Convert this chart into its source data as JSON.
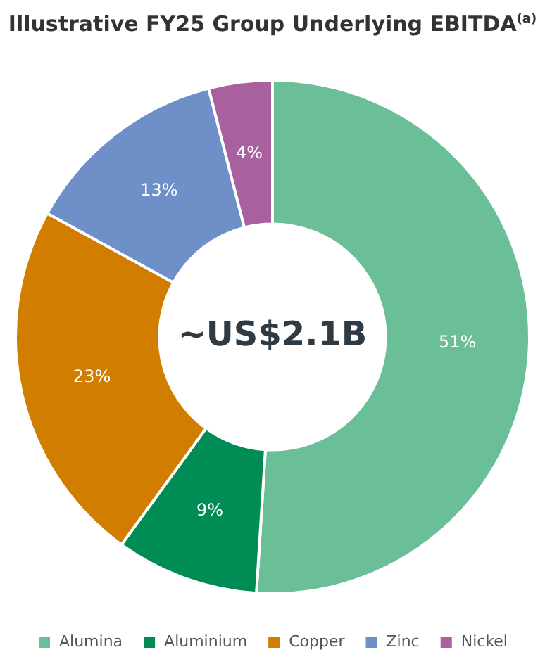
{
  "chart_data": {
    "type": "donut",
    "title": "Illustrative FY25 Group Underlying EBITDA$^{(a)}$",
    "categories": [
      "Alumina",
      "Aluminium",
      "Copper",
      "Zinc",
      "Nickel"
    ],
    "values": [
      51,
      9,
      23,
      13,
      4
    ],
    "value_labels": [
      "51%",
      "9%",
      "23%",
      "13%",
      "4%"
    ],
    "colors": [
      "#6abf98",
      "#008c55",
      "#d17d00",
      "#6f8fc9",
      "#a9609f"
    ],
    "annotations": [
      "~US$2.1B"
    ],
    "legend": "bottom"
  }
}
